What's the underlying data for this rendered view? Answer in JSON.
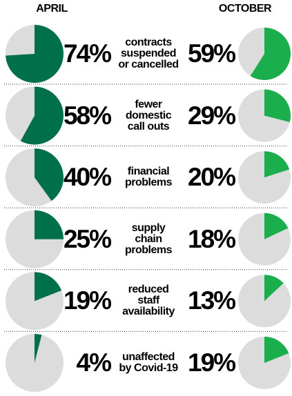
{
  "chart_data": {
    "type": "pie",
    "categories": [
      "contracts\nsuspended\nor cancelled",
      "fewer\ndomestic\ncall outs",
      "financial\nproblems",
      "supply\nchain\nproblems",
      "reduced\nstaff\navailability",
      "unaffected\nby Covid-19"
    ],
    "series": [
      {
        "name": "APRIL",
        "color": "#00704a",
        "values": [
          74,
          58,
          40,
          25,
          19,
          4
        ],
        "value_labels": [
          "74%",
          "58%",
          "40%",
          "25%",
          "19%",
          "4%"
        ]
      },
      {
        "name": "OCTOBER",
        "color": "#1aae4c",
        "values": [
          59,
          29,
          20,
          18,
          13,
          19
        ],
        "value_labels": [
          "59%",
          "29%",
          "20%",
          "18%",
          "13%",
          "19%"
        ]
      }
    ]
  }
}
